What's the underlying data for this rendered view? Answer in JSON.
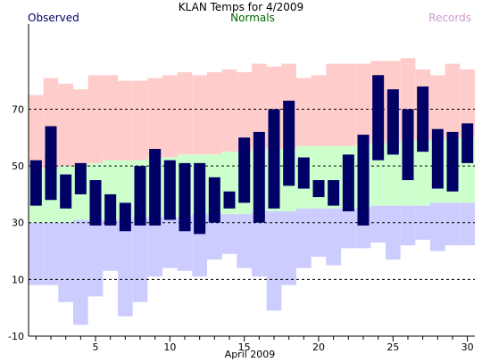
{
  "chart_data": {
    "type": "bar",
    "title": "KLAN Temps for 4/2009",
    "xlabel": "April 2009",
    "ylabel": "",
    "xlim": [
      0.5,
      30.5
    ],
    "ylim": [
      -10,
      100
    ],
    "y_ticks": [
      -10,
      10,
      30,
      50,
      70
    ],
    "x_ticks": [
      5,
      10,
      15,
      20,
      25,
      30
    ],
    "grid": "dashed horizontal lines at y ticks",
    "legend": [
      {
        "name": "Observed",
        "color": "#000066",
        "position": "top-left"
      },
      {
        "name": "Normals",
        "color": "#006600",
        "position": "top-center"
      },
      {
        "name": "Records",
        "color": "#cc99cc",
        "position": "top-right"
      }
    ],
    "colors": {
      "observed": "#000066",
      "normals": "#ccffcc",
      "record_high": "#ffcccc",
      "record_low": "#ccccff",
      "grid": "#000000",
      "axis": "#000000"
    },
    "days": [
      1,
      2,
      3,
      4,
      5,
      6,
      7,
      8,
      9,
      10,
      11,
      12,
      13,
      14,
      15,
      16,
      17,
      18,
      19,
      20,
      21,
      22,
      23,
      24,
      25,
      26,
      27,
      28,
      29,
      30
    ],
    "series": [
      {
        "name": "Observed",
        "high": [
          52,
          64,
          47,
          51,
          45,
          40,
          37,
          50,
          56,
          52,
          51,
          51,
          46,
          41,
          60,
          62,
          70,
          73,
          53,
          45,
          45,
          54,
          61,
          82,
          77,
          70,
          78,
          63,
          62,
          65
        ],
        "low": [
          36,
          38,
          35,
          40,
          29,
          29,
          27,
          29,
          29,
          31,
          27,
          26,
          30,
          35,
          37,
          30,
          35,
          43,
          42,
          39,
          36,
          34,
          29,
          52,
          54,
          45,
          55,
          42,
          41,
          51
        ]
      },
      {
        "name": "Normal High",
        "values": [
          49,
          49,
          50,
          50,
          51,
          52,
          52,
          52,
          53,
          53,
          54,
          54,
          54,
          55,
          55,
          56,
          56,
          56,
          57,
          57,
          57,
          57,
          58,
          58,
          58,
          59,
          59,
          59,
          60,
          60
        ]
      },
      {
        "name": "Normal Low",
        "values": [
          30,
          30,
          30,
          31,
          31,
          31,
          31,
          32,
          32,
          32,
          32,
          33,
          33,
          33,
          33,
          34,
          34,
          34,
          35,
          35,
          35,
          35,
          35,
          36,
          36,
          36,
          36,
          37,
          37,
          37
        ]
      },
      {
        "name": "Record High",
        "values": [
          75,
          81,
          79,
          77,
          82,
          82,
          80,
          80,
          81,
          82,
          83,
          82,
          83,
          84,
          83,
          86,
          85,
          86,
          81,
          82,
          86,
          86,
          86,
          87,
          87,
          88,
          84,
          82,
          86,
          84
        ]
      },
      {
        "name": "Record Low",
        "values": [
          8,
          8,
          2,
          -6,
          4,
          13,
          -3,
          2,
          11,
          14,
          13,
          11,
          17,
          19,
          14,
          11,
          -1,
          8,
          14,
          18,
          15,
          21,
          21,
          23,
          17,
          22,
          24,
          20,
          22,
          22
        ]
      }
    ]
  }
}
